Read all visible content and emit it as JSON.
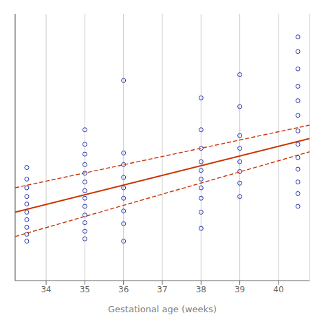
{
  "chart_data": {
    "type": "scatter",
    "title": "",
    "xlabel": "Gestational age (weeks)",
    "xlim": [
      33.2,
      40.8
    ],
    "xticks": [
      34,
      35,
      36,
      37,
      38,
      39,
      40
    ],
    "ylim": [
      50,
      510
    ],
    "grid": true,
    "tick_labels": "x",
    "series": [
      {
        "type": "scatter",
        "marker": "circle",
        "color": "#2233aa",
        "x": [
          33.5,
          33.5,
          33.5,
          33.5,
          33.5,
          33.5,
          33.5,
          33.5,
          33.5,
          33.5,
          35.0,
          35.0,
          35.0,
          35.0,
          35.0,
          35.0,
          35.0,
          35.0,
          35.0,
          35.0,
          35.0,
          35.0,
          35.0,
          36.0,
          36.0,
          36.0,
          36.0,
          36.0,
          36.0,
          36.0,
          36.0,
          36.0,
          38.0,
          38.0,
          38.0,
          38.0,
          38.0,
          38.0,
          38.0,
          38.0,
          38.0,
          38.0,
          39.0,
          39.0,
          39.0,
          39.0,
          39.0,
          39.0,
          39.0,
          39.0,
          40.5,
          40.5,
          40.5,
          40.5,
          40.5,
          40.5,
          40.5,
          40.5,
          40.5,
          40.5,
          40.5,
          40.5,
          40.5
        ],
        "values": [
          245,
          225,
          210,
          195,
          182,
          168,
          155,
          142,
          130,
          118,
          310,
          285,
          268,
          250,
          235,
          220,
          205,
          192,
          178,
          163,
          150,
          135,
          122,
          395,
          270,
          250,
          228,
          210,
          192,
          170,
          148,
          118,
          365,
          310,
          278,
          255,
          240,
          225,
          210,
          192,
          168,
          140,
          405,
          350,
          300,
          278,
          255,
          238,
          218,
          195,
          470,
          445,
          415,
          385,
          360,
          335,
          308,
          285,
          262,
          242,
          220,
          200,
          178
        ]
      },
      {
        "type": "line",
        "line_style": "solid",
        "color": "#cc3300",
        "x": [
          33.2,
          40.8
        ],
        "values": [
          168,
          295
        ]
      },
      {
        "type": "line",
        "line_style": "dashed",
        "color": "#cc3300",
        "x": [
          33.2,
          40.8
        ],
        "values": [
          210,
          318
        ]
      },
      {
        "type": "line",
        "line_style": "dashed",
        "color": "#cc3300",
        "x": [
          33.2,
          40.8
        ],
        "values": [
          126,
          272
        ]
      }
    ]
  }
}
